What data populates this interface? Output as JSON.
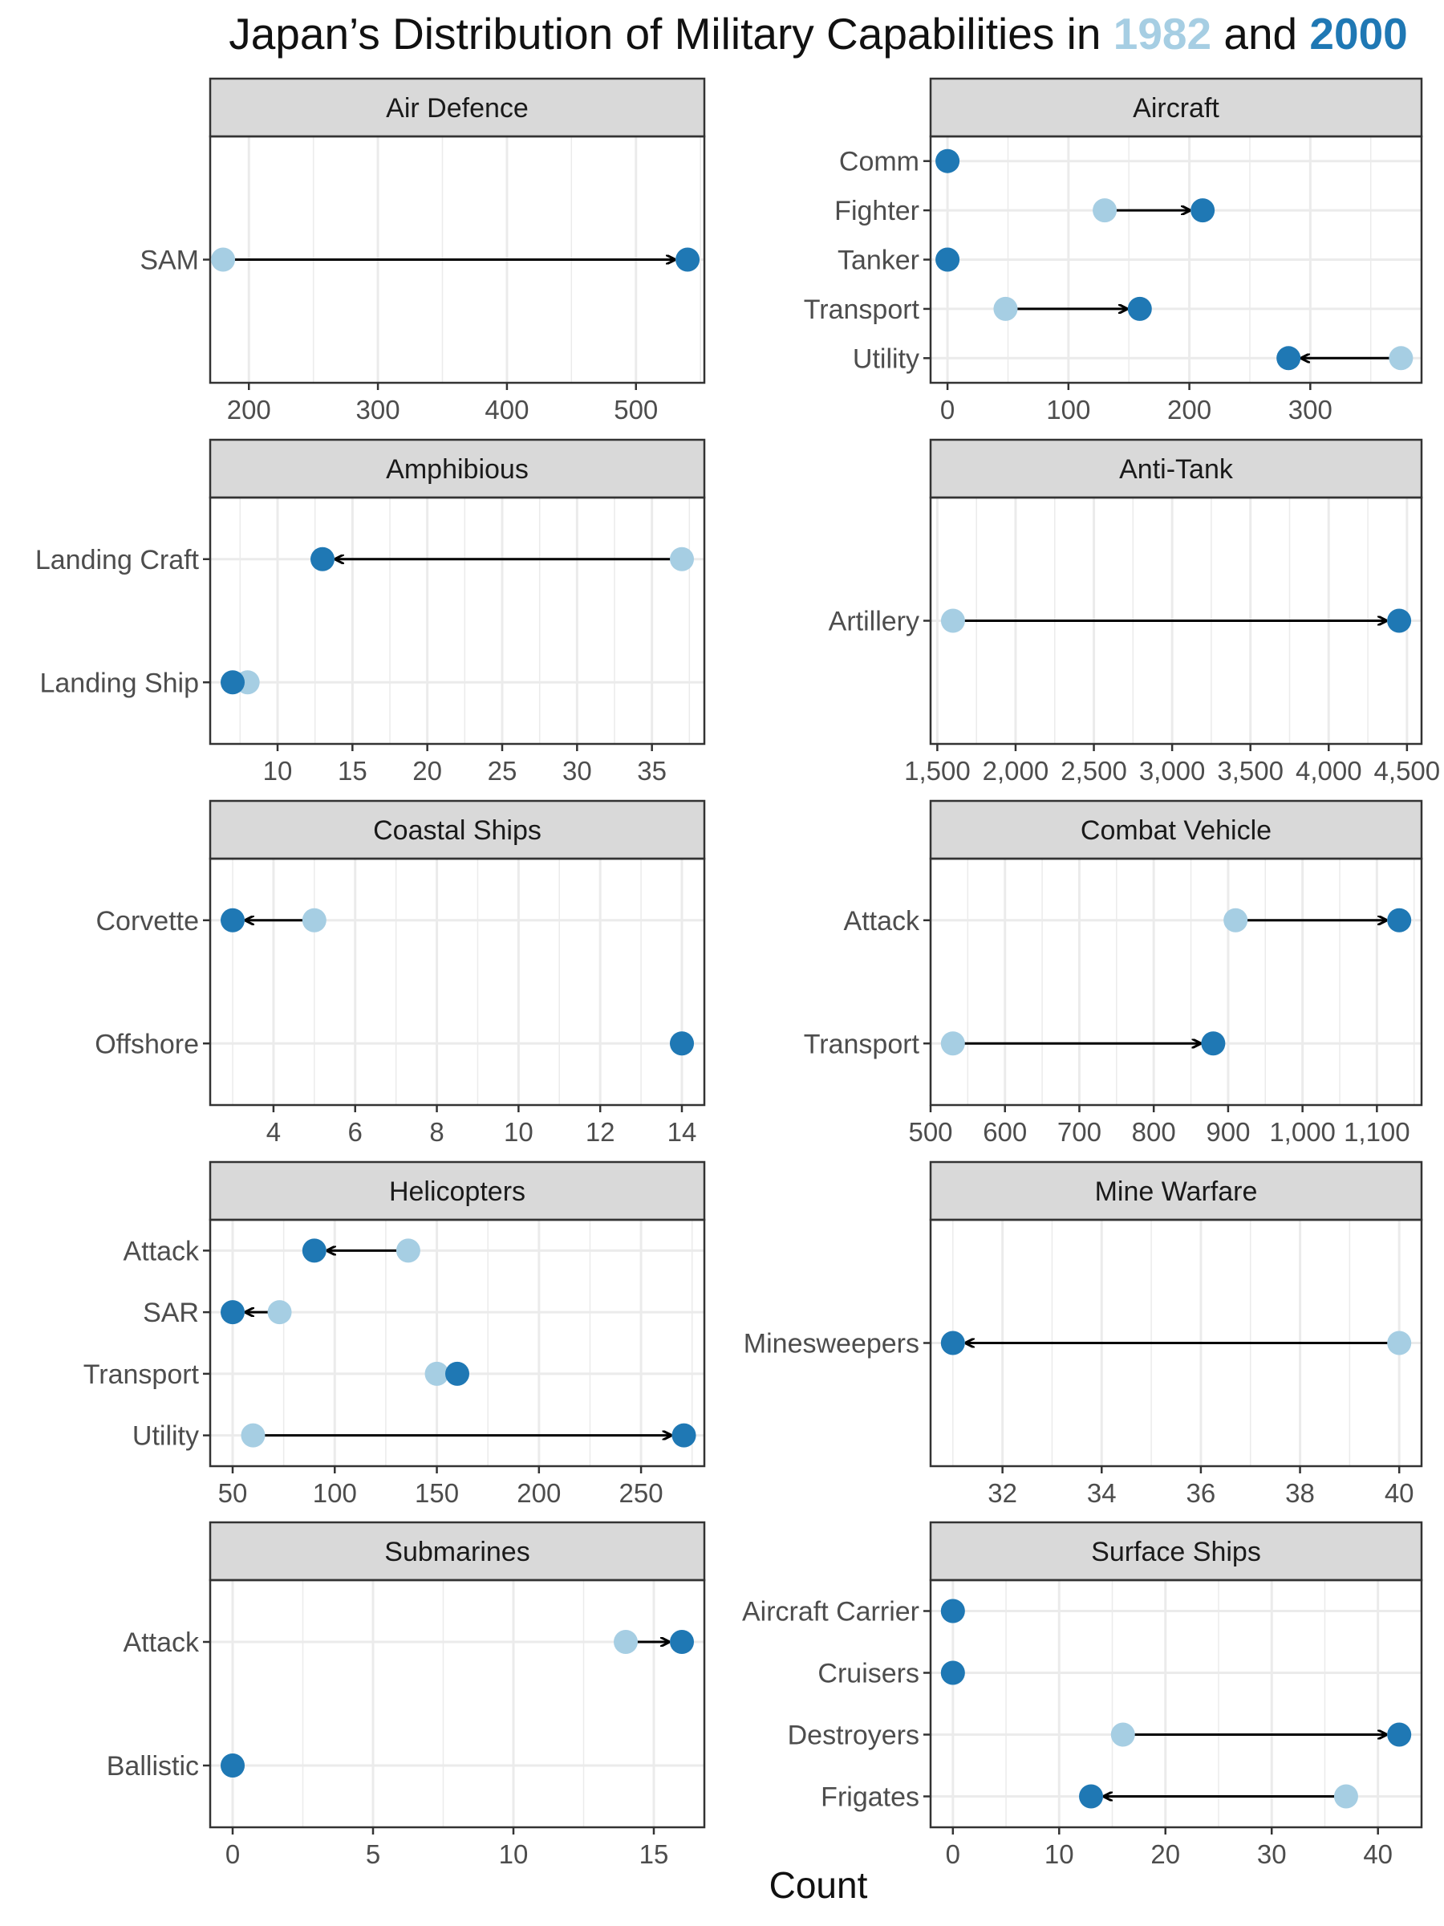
{
  "chart_data": {
    "type": "dumbbell",
    "title": {
      "prefix": "Japan’s Distribution of Military Capabilities in ",
      "year1": "1982",
      "middle": " and ",
      "year2": "2000"
    },
    "xlabel": "Count",
    "colors": {
      "y1982": "#a6cee3",
      "y2000": "#1f78b4",
      "arrow": "#000000"
    },
    "panels": [
      {
        "title": "Air Defence",
        "xlim": [
          170,
          553
        ],
        "ticks": [
          200,
          300,
          400,
          500
        ],
        "tick_labels": [
          "200",
          "300",
          "400",
          "500"
        ],
        "minor_step": 50,
        "rows": [
          {
            "label": "SAM",
            "v1982": 180,
            "v2000": 540
          }
        ]
      },
      {
        "title": "Aircraft",
        "xlim": [
          -14,
          392
        ],
        "ticks": [
          0,
          100,
          200,
          300
        ],
        "tick_labels": [
          "0",
          "100",
          "200",
          "300"
        ],
        "minor_step": 50,
        "rows": [
          {
            "label": "Utility",
            "v1982": 375,
            "v2000": 282
          },
          {
            "label": "Transport",
            "v1982": 48,
            "v2000": 159
          },
          {
            "label": "Tanker",
            "v1982": 0,
            "v2000": 0
          },
          {
            "label": "Fighter",
            "v1982": 130,
            "v2000": 211
          },
          {
            "label": "Comm",
            "v1982": 0,
            "v2000": 0
          }
        ]
      },
      {
        "title": "Amphibious",
        "xlim": [
          5.5,
          38.5
        ],
        "ticks": [
          10,
          15,
          20,
          25,
          30,
          35
        ],
        "tick_labels": [
          "10",
          "15",
          "20",
          "25",
          "30",
          "35"
        ],
        "minor_step": 2.5,
        "rows": [
          {
            "label": "Landing Ship",
            "v1982": 8,
            "v2000": 7
          },
          {
            "label": "Landing Craft",
            "v1982": 37,
            "v2000": 13
          }
        ]
      },
      {
        "title": "Anti-Tank",
        "xlim": [
          1457,
          4593
        ],
        "ticks": [
          1500,
          2000,
          2500,
          3000,
          3500,
          4000,
          4500
        ],
        "tick_labels": [
          "1,500",
          "2,000",
          "2,500",
          "3,000",
          "3,500",
          "4,000",
          "4,500"
        ],
        "minor_step": 250,
        "rows": [
          {
            "label": "Artillery",
            "v1982": 1600,
            "v2000": 4450
          }
        ]
      },
      {
        "title": "Coastal Ships",
        "xlim": [
          2.45,
          14.55
        ],
        "ticks": [
          4,
          6,
          8,
          10,
          12,
          14
        ],
        "tick_labels": [
          "4",
          "6",
          "8",
          "10",
          "12",
          "14"
        ],
        "minor_step": 1,
        "rows": [
          {
            "label": "Offshore",
            "v1982": 14,
            "v2000": 14
          },
          {
            "label": "Corvette",
            "v1982": 5,
            "v2000": 3
          }
        ]
      },
      {
        "title": "Combat Vehicle",
        "xlim": [
          500,
          1160
        ],
        "ticks": [
          500,
          600,
          700,
          800,
          900,
          1000,
          1100
        ],
        "tick_labels": [
          "500",
          "600",
          "700",
          "800",
          "900",
          "1,000",
          "1,100"
        ],
        "minor_step": 50,
        "rows": [
          {
            "label": "Transport",
            "v1982": 530,
            "v2000": 880
          },
          {
            "label": "Attack",
            "v1982": 910,
            "v2000": 1130
          }
        ]
      },
      {
        "title": "Helicopters",
        "xlim": [
          39,
          281
        ],
        "ticks": [
          50,
          100,
          150,
          200,
          250
        ],
        "tick_labels": [
          "50",
          "100",
          "150",
          "200",
          "250"
        ],
        "minor_step": 25,
        "rows": [
          {
            "label": "Utility",
            "v1982": 60,
            "v2000": 271
          },
          {
            "label": "Transport",
            "v1982": 150,
            "v2000": 160
          },
          {
            "label": "SAR",
            "v1982": 73,
            "v2000": 50
          },
          {
            "label": "Attack",
            "v1982": 136,
            "v2000": 90
          }
        ]
      },
      {
        "title": "Mine Warfare",
        "xlim": [
          30.55,
          40.45
        ],
        "ticks": [
          32,
          34,
          36,
          38,
          40
        ],
        "tick_labels": [
          "32",
          "34",
          "36",
          "38",
          "40"
        ],
        "minor_step": 1,
        "rows": [
          {
            "label": "Minesweepers",
            "v1982": 40,
            "v2000": 31
          }
        ]
      },
      {
        "title": "Submarines",
        "xlim": [
          -0.8,
          16.8
        ],
        "ticks": [
          0,
          5,
          10,
          15
        ],
        "tick_labels": [
          "0",
          "5",
          "10",
          "15"
        ],
        "minor_step": 2.5,
        "rows": [
          {
            "label": "Ballistic",
            "v1982": 0,
            "v2000": 0
          },
          {
            "label": "Attack",
            "v1982": 14,
            "v2000": 16
          }
        ]
      },
      {
        "title": "Surface Ships",
        "xlim": [
          -2.1,
          44.1
        ],
        "ticks": [
          0,
          10,
          20,
          30,
          40
        ],
        "tick_labels": [
          "0",
          "10",
          "20",
          "30",
          "40"
        ],
        "minor_step": 5,
        "rows": [
          {
            "label": "Frigates",
            "v1982": 37,
            "v2000": 13
          },
          {
            "label": "Destroyers",
            "v1982": 16,
            "v2000": 42
          },
          {
            "label": "Cruisers",
            "v1982": 0,
            "v2000": 0
          },
          {
            "label": "Aircraft Carrier",
            "v1982": 0,
            "v2000": 0
          }
        ]
      }
    ]
  }
}
